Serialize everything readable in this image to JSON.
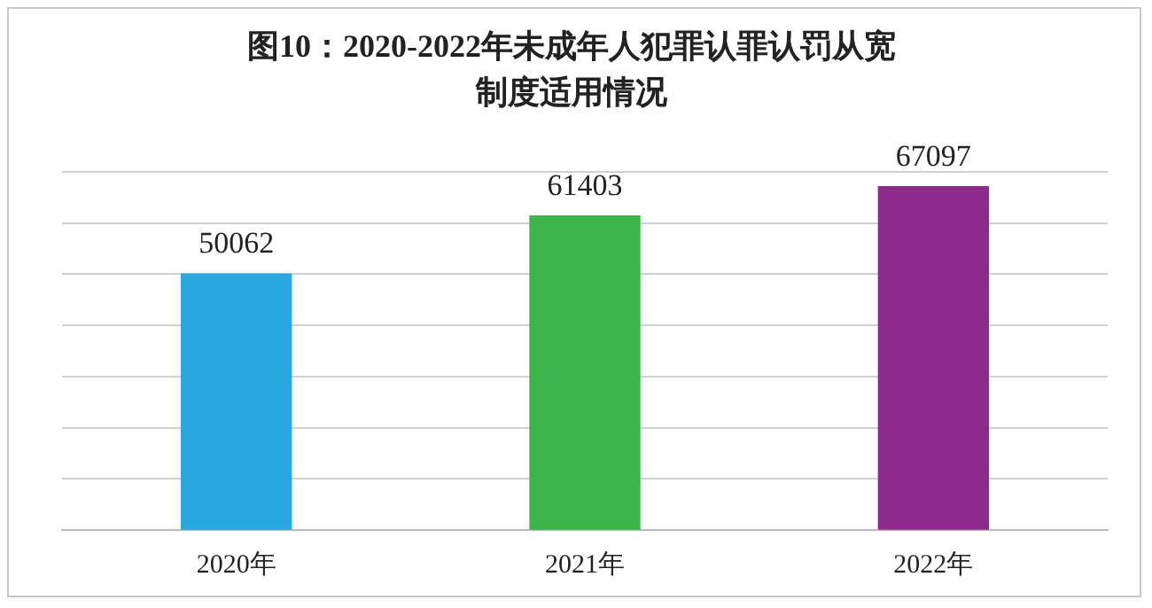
{
  "chart_data": {
    "type": "bar",
    "title": "图10：2020-2022年未成年人犯罪认罪认罚从宽制度适用情况",
    "categories": [
      "2020年",
      "2021年",
      "2022年"
    ],
    "values": [
      50062,
      61403,
      67097
    ],
    "colors": [
      "#29a8e0",
      "#3cb54a",
      "#8e2a8e"
    ],
    "ylim": [
      0,
      70000
    ],
    "yticks": [
      {
        "value": 0,
        "label": null
      },
      {
        "value": 10000,
        "label": null
      },
      {
        "value": 20000,
        "label": null
      },
      {
        "value": 30000,
        "label": null
      },
      {
        "value": 40000,
        "label": null
      },
      {
        "value": 50000,
        "label": null
      },
      {
        "value": 60000,
        "label": null
      },
      {
        "value": 70000,
        "label": null
      }
    ],
    "tick_labels": "x",
    "grid": "y",
    "data_labels": true,
    "legend": false
  }
}
